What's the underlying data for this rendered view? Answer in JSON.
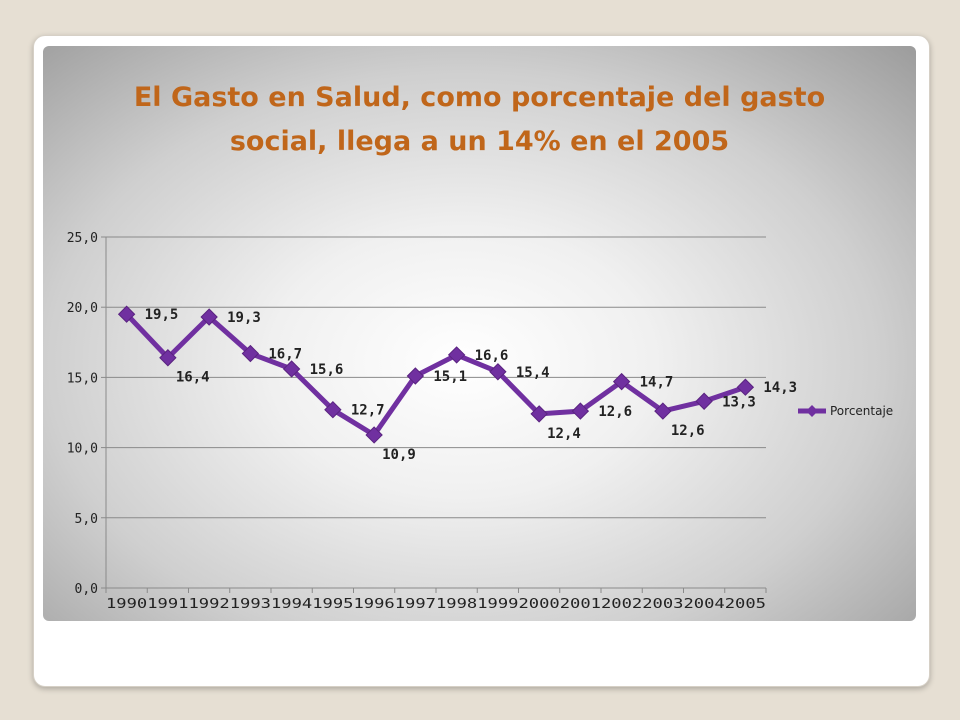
{
  "slide": {
    "title_line1": "El Gasto en Salud, como porcentaje del gasto",
    "title_line2": "social, llega a un 14% en el 2005"
  },
  "chart_data": {
    "type": "line",
    "title": "El Gasto en Salud, como porcentaje del gasto social, llega a un 14% en el 2005",
    "categories": [
      "1990",
      "1991",
      "1992",
      "1993",
      "1994",
      "1995",
      "1996",
      "1997",
      "1998",
      "1999",
      "2000",
      "2001",
      "2002",
      "2003",
      "2004",
      "2005"
    ],
    "series": [
      {
        "name": "Porcentaje",
        "values": [
          19.5,
          16.4,
          19.3,
          16.7,
          15.6,
          12.7,
          10.9,
          15.1,
          16.6,
          15.4,
          12.4,
          12.6,
          14.7,
          12.6,
          13.3,
          14.3
        ],
        "color": "#7030a0"
      }
    ],
    "data_labels": [
      "19,5",
      "16,4",
      "19,3",
      "16,7",
      "15,6",
      "12,7",
      "10,9",
      "15,1",
      "16,6",
      "15,4",
      "12,4",
      "12,6",
      "14,7",
      "12,6",
      "13,3",
      "14,3"
    ],
    "y_ticks": [
      "0,0",
      "5,0",
      "10,0",
      "15,0",
      "20,0",
      "25,0"
    ],
    "ylim": [
      0,
      25
    ],
    "grid": true,
    "legend_position": "right"
  }
}
